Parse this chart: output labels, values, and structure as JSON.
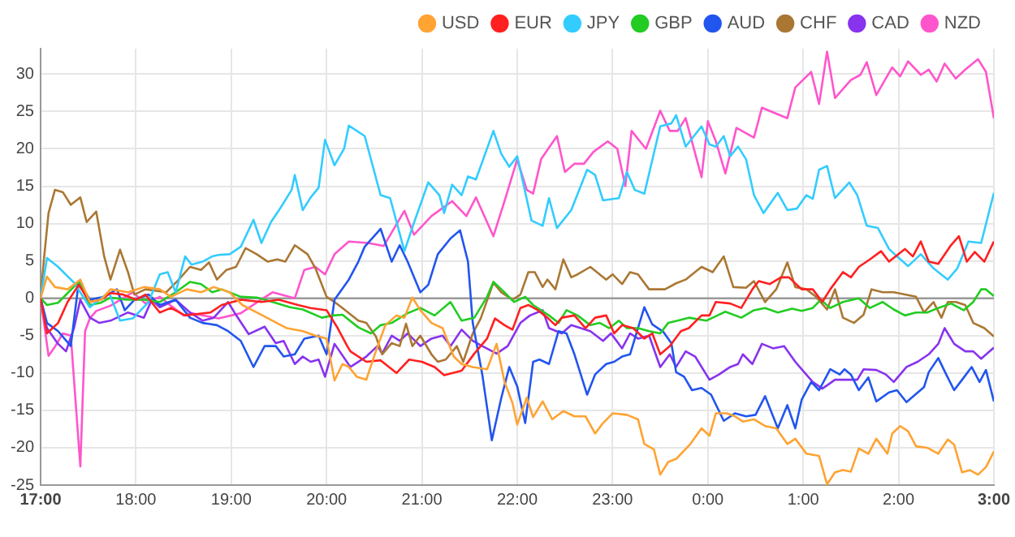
{
  "chart_data": {
    "type": "line",
    "legend": "top right",
    "grid": true,
    "marker": "none",
    "line_style": "solid",
    "xlim": [
      "--01-01T17:00",
      "--01-02T03:00"
    ],
    "xticks": [
      {
        "value": "--01-01T17:00",
        "label": "17:00"
      },
      {
        "value": "--01-01T18:00",
        "label": "18:00"
      },
      {
        "value": "--01-01T19:00",
        "label": "19:00"
      },
      {
        "value": "--01-01T20:00",
        "label": "20:00"
      },
      {
        "value": "--01-01T21:00",
        "label": "21:00"
      },
      {
        "value": "--01-01T22:00",
        "label": "22:00"
      },
      {
        "value": "--01-01T23:00",
        "label": "23:00"
      },
      {
        "value": "--01-02T00:00",
        "label": "0:00"
      },
      {
        "value": "--01-02T01:00",
        "label": "1:00"
      },
      {
        "value": "--01-02T02:00",
        "label": "2:00"
      },
      {
        "value": "--01-02T03:00",
        "label": "3:00"
      }
    ],
    "ylim": [
      -25,
      33.4
    ],
    "yticks": [
      -25,
      -20,
      -15,
      -10,
      -5,
      0,
      5,
      10,
      15,
      20,
      25,
      30
    ],
    "ref_lines": [
      {
        "axis": "y",
        "value": 0,
        "color": "#999999"
      }
    ],
    "series": [
      {
        "name": "USD",
        "color": "#ffa333",
        "x": [
          "--01-01T17:00",
          "--01-01T17:04",
          "--01-01T17:09",
          "--01-01T17:17",
          "--01-01T17:25",
          "--01-01T17:31",
          "--01-01T17:38",
          "--01-01T17:44",
          "--01-01T17:55",
          "--01-01T18:05",
          "--01-01T18:15",
          "--01-01T18:22",
          "--01-01T18:32",
          "--01-01T18:41",
          "--01-01T18:49",
          "--01-01T18:59",
          "--01-01T19:07",
          "--01-01T19:16",
          "--01-01T19:26",
          "--01-01T19:35",
          "--01-01T19:45",
          "--01-01T19:53",
          "--01-01T20:00",
          "--01-01T20:05",
          "--01-01T20:10",
          "--01-01T20:14",
          "--01-01T20:19",
          "--01-01T20:25",
          "--01-01T20:31",
          "--01-01T20:37",
          "--01-01T20:44",
          "--01-01T20:49",
          "--01-01T20:54",
          "--01-01T20:59",
          "--01-01T21:06",
          "--01-01T21:13",
          "--01-01T21:20",
          "--01-01T21:25",
          "--01-01T21:32",
          "--01-01T21:41",
          "--01-01T21:47",
          "--01-01T21:52",
          "--01-01T21:57",
          "--01-01T22:00",
          "--01-01T22:06",
          "--01-01T22:10",
          "--01-01T22:16",
          "--01-01T22:22",
          "--01-01T22:29",
          "--01-01T22:36",
          "--01-01T22:43",
          "--01-01T22:49",
          "--01-01T22:54",
          "--01-01T23:00",
          "--01-01T23:09",
          "--01-01T23:16",
          "--01-01T23:20",
          "--01-01T23:26",
          "--01-01T23:30",
          "--01-01T23:35",
          "--01-01T23:40",
          "--01-01T23:49",
          "--01-01T23:56",
          "--01-02T00:01",
          "--01-02T00:05",
          "--01-02T00:12",
          "--01-02T00:17",
          "--01-02T00:22",
          "--01-02T00:29",
          "--01-02T00:36",
          "--01-02T00:43",
          "--01-02T00:50",
          "--01-02T00:55",
          "--01-02T01:02",
          "--01-02T01:10",
          "--01-02T01:15",
          "--01-02T01:20",
          "--01-02T01:25",
          "--01-02T01:30",
          "--01-02T01:35",
          "--01-02T01:41",
          "--01-02T01:46",
          "--01-02T01:53",
          "--01-02T01:56",
          "--01-02T02:01",
          "--01-02T02:06",
          "--01-02T02:11",
          "--01-02T02:18",
          "--01-02T02:25",
          "--01-02T02:31",
          "--01-02T02:35",
          "--01-02T02:40",
          "--01-02T02:45",
          "--01-02T02:50",
          "--01-02T02:55",
          "--01-02T03:00"
        ],
        "values": [
          0,
          2.9,
          1.5,
          1.2,
          2.5,
          -0.5,
          -0.2,
          1.2,
          0.8,
          1.5,
          1.2,
          0.2,
          1.2,
          0.8,
          1.5,
          0.8,
          -0.9,
          -1.9,
          -3,
          -4,
          -4.4,
          -5,
          -5.4,
          -11,
          -8.8,
          -9.2,
          -10.5,
          -10.9,
          -7.1,
          -3.6,
          -2.3,
          -2.6,
          0.1,
          -1.6,
          -3.3,
          -4,
          -7.8,
          -8.8,
          -9.2,
          -9.5,
          -6.1,
          -11.2,
          -14,
          -16.9,
          -13.3,
          -15.9,
          -13.8,
          -16.2,
          -15.1,
          -15.8,
          -15.8,
          -18.1,
          -16.7,
          -15.4,
          -15.6,
          -16.2,
          -19.5,
          -20.2,
          -23.6,
          -21.9,
          -21.5,
          -19.5,
          -17.4,
          -18.4,
          -15.4,
          -15.4,
          -15.8,
          -16.5,
          -16.2,
          -17.1,
          -17.4,
          -19.5,
          -18.8,
          -20.8,
          -21.1,
          -24.9,
          -23.3,
          -23,
          -23.2,
          -20.1,
          -20.8,
          -18.8,
          -20.8,
          -18.1,
          -17.1,
          -17.8,
          -19.8,
          -20,
          -20.8,
          -18.9,
          -19.6,
          -23.3,
          -23,
          -23.6,
          -22.6,
          -20.5
        ]
      },
      {
        "name": "EUR",
        "color": "#ff2020",
        "x": [
          "--01-01T17:00",
          "--01-01T17:04",
          "--01-01T17:11",
          "--01-01T17:17",
          "--01-01T17:24",
          "--01-01T17:31",
          "--01-01T17:38",
          "--01-01T17:44",
          "--01-01T17:52",
          "--01-01T18:00",
          "--01-01T18:06",
          "--01-01T18:15",
          "--01-01T18:22",
          "--01-01T18:31",
          "--01-01T18:39",
          "--01-01T18:47",
          "--01-01T18:54",
          "--01-01T19:06",
          "--01-01T19:19",
          "--01-01T19:30",
          "--01-01T19:42",
          "--01-01T19:50",
          "--01-01T20:00",
          "--01-01T20:07",
          "--01-01T20:13",
          "--01-01T20:15",
          "--01-01T20:25",
          "--01-01T20:34",
          "--01-01T20:44",
          "--01-01T20:52",
          "--01-01T21:00",
          "--01-01T21:08",
          "--01-01T21:14",
          "--01-01T21:25",
          "--01-01T21:33",
          "--01-01T21:41",
          "--01-01T21:46",
          "--01-01T21:52",
          "--01-01T21:57",
          "--01-01T22:02",
          "--01-01T22:07",
          "--01-01T22:13",
          "--01-01T22:19",
          "--01-01T22:24",
          "--01-01T22:28",
          "--01-01T22:36",
          "--01-01T22:43",
          "--01-01T22:49",
          "--01-01T22:56",
          "--01-01T23:01",
          "--01-01T23:06",
          "--01-01T23:13",
          "--01-01T23:20",
          "--01-01T23:25",
          "--01-01T23:30",
          "--01-01T23:36",
          "--01-01T23:43",
          "--01-01T23:48",
          "--01-01T23:56",
          "--01-02T00:01",
          "--01-02T00:05",
          "--01-02T00:14",
          "--01-02T00:21",
          "--01-02T00:28",
          "--01-02T00:32",
          "--01-02T00:39",
          "--01-02T00:46",
          "--01-02T00:51",
          "--01-02T00:59",
          "--01-02T01:06",
          "--01-02T01:12",
          "--01-02T01:17",
          "--01-02T01:25",
          "--01-02T01:30",
          "--01-02T01:35",
          "--01-02T01:42",
          "--01-02T01:49",
          "--01-02T01:54",
          "--01-02T02:04",
          "--01-02T02:09",
          "--01-02T02:14",
          "--01-02T02:19",
          "--01-02T02:25",
          "--01-02T02:33",
          "--01-02T02:38",
          "--01-02T02:43",
          "--01-02T02:48",
          "--01-02T02:54",
          "--01-02T03:00"
        ],
        "values": [
          0,
          -4.7,
          -3.3,
          -0.5,
          1.8,
          -0.5,
          -0.2,
          0.7,
          0.5,
          -0.2,
          0.5,
          -1.9,
          -1.3,
          -2.3,
          -2.1,
          -1.9,
          -0.9,
          -0.2,
          -0.5,
          -0.2,
          -0.9,
          -1.3,
          -1.6,
          -4,
          -6.4,
          -7.1,
          -8.5,
          -8.3,
          -10,
          -8.2,
          -8.5,
          -9.2,
          -10.3,
          -9.7,
          -7.4,
          -5.4,
          -2.7,
          -3.6,
          -4.2,
          -1.3,
          -0.9,
          -1.6,
          -2.6,
          -3.6,
          -2.6,
          -2.3,
          -4,
          -2.6,
          -2.3,
          -4.7,
          -3.6,
          -4,
          -5.4,
          -4.7,
          -7.5,
          -6.4,
          -4.4,
          -4,
          -2.3,
          -2.3,
          -0.5,
          -0.7,
          -1.3,
          1.2,
          2.3,
          1.9,
          2.8,
          2.8,
          1.2,
          1.2,
          -0.5,
          1.2,
          3.5,
          2.8,
          4.2,
          5.2,
          6.3,
          4.9,
          6.6,
          5.6,
          7.6,
          4.9,
          4.6,
          7.1,
          8.3,
          4.9,
          6.2,
          4.9,
          7.6
        ]
      },
      {
        "name": "JPY",
        "color": "#33ccff",
        "x": [
          "--01-01T17:00",
          "--01-01T17:04",
          "--01-01T17:11",
          "--01-01T17:21",
          "--01-01T17:31",
          "--01-01T17:43",
          "--01-01T17:50",
          "--01-01T17:58",
          "--01-01T18:08",
          "--01-01T18:15",
          "--01-01T18:20",
          "--01-01T18:25",
          "--01-01T18:31",
          "--01-01T18:35",
          "--01-01T18:42",
          "--01-01T18:48",
          "--01-01T18:52",
          "--01-01T18:59",
          "--01-01T19:06",
          "--01-01T19:14",
          "--01-01T19:19",
          "--01-01T19:25",
          "--01-01T19:31",
          "--01-01T19:38",
          "--01-01T19:40",
          "--01-01T19:45",
          "--01-01T19:50",
          "--01-01T19:55",
          "--01-01T19:59",
          "--01-01T20:05",
          "--01-01T20:11",
          "--01-01T20:14",
          "--01-01T20:24",
          "--01-01T20:34",
          "--01-01T20:40",
          "--01-01T20:49",
          "--01-01T20:55",
          "--01-01T21:04",
          "--01-01T21:11",
          "--01-01T21:14",
          "--01-01T21:19",
          "--01-01T21:25",
          "--01-01T21:29",
          "--01-01T21:34",
          "--01-01T21:45",
          "--01-01T21:50",
          "--01-01T21:55",
          "--01-01T22:00",
          "--01-01T22:09",
          "--01-01T22:16",
          "--01-01T22:20",
          "--01-01T22:25",
          "--01-01T22:34",
          "--01-01T22:44",
          "--01-01T22:49",
          "--01-01T22:54",
          "--01-01T23:04",
          "--01-01T23:09",
          "--01-01T23:14",
          "--01-01T23:20",
          "--01-01T23:30",
          "--01-01T23:37",
          "--01-01T23:40",
          "--01-01T23:46",
          "--01-01T23:56",
          "--01-02T00:01",
          "--01-02T00:05",
          "--01-02T00:10",
          "--01-02T00:14",
          "--01-02T00:19",
          "--01-02T00:24",
          "--01-02T00:29",
          "--01-02T00:35",
          "--01-02T00:44",
          "--01-02T00:50",
          "--01-02T00:56",
          "--01-02T01:02",
          "--01-02T01:06",
          "--01-02T01:10",
          "--01-02T01:15",
          "--01-02T01:20",
          "--01-02T01:29",
          "--01-02T01:34",
          "--01-02T01:40",
          "--01-02T01:47",
          "--01-02T01:54",
          "--01-02T01:59",
          "--01-02T02:06",
          "--01-02T02:14",
          "--01-02T02:22",
          "--01-02T02:31",
          "--01-02T02:37",
          "--01-02T02:44",
          "--01-02T02:52",
          "--01-02T03:00"
        ],
        "values": [
          0,
          5.4,
          4.2,
          2.1,
          -1.2,
          0.8,
          -3,
          -2.7,
          -0.5,
          3.2,
          3.5,
          0.8,
          5.6,
          4.5,
          4.9,
          5.6,
          5.8,
          5.9,
          6.9,
          10.5,
          7.4,
          10.2,
          12.1,
          14.5,
          16.5,
          11.8,
          13.5,
          14.8,
          21.2,
          17.8,
          20,
          23.1,
          21.7,
          13.8,
          13.4,
          6.3,
          10.1,
          15.5,
          13.8,
          11.4,
          15.2,
          13.8,
          16.3,
          15.9,
          22.4,
          19.3,
          17.6,
          19,
          10.4,
          9.7,
          13.4,
          9.4,
          11.8,
          17.2,
          16.5,
          13.1,
          13.4,
          16.9,
          14.5,
          14,
          23,
          23.4,
          24.5,
          20.3,
          23,
          20.6,
          20.3,
          21.7,
          19,
          20.3,
          18.6,
          13.8,
          11.4,
          14.1,
          11.8,
          12,
          13.8,
          13.3,
          17.2,
          17.7,
          13.4,
          15.5,
          13.8,
          9.7,
          9.4,
          6.6,
          5.6,
          4.3,
          5.9,
          4,
          2.5,
          4,
          7.6,
          7.4,
          14.1
        ]
      },
      {
        "name": "GBP",
        "color": "#22cc22",
        "x": [
          "--01-01T17:00",
          "--01-01T17:04",
          "--01-01T17:11",
          "--01-01T17:24",
          "--01-01T17:31",
          "--01-01T17:38",
          "--01-01T17:44",
          "--01-01T17:54",
          "--01-01T18:05",
          "--01-01T18:15",
          "--01-01T18:25",
          "--01-01T18:34",
          "--01-01T18:41",
          "--01-01T18:48",
          "--01-01T18:54",
          "--01-01T19:06",
          "--01-01T19:16",
          "--01-01T19:26",
          "--01-01T19:37",
          "--01-01T19:45",
          "--01-01T19:57",
          "--01-01T20:04",
          "--01-01T20:10",
          "--01-01T20:20",
          "--01-01T20:28",
          "--01-01T20:34",
          "--01-01T20:41",
          "--01-01T20:51",
          "--01-01T20:59",
          "--01-01T21:08",
          "--01-01T21:18",
          "--01-01T21:25",
          "--01-01T21:33",
          "--01-01T21:41",
          "--01-01T21:45",
          "--01-01T21:52",
          "--01-01T21:58",
          "--01-01T22:05",
          "--01-01T22:10",
          "--01-01T22:20",
          "--01-01T22:26",
          "--01-01T22:31",
          "--01-01T22:38",
          "--01-01T22:46",
          "--01-01T22:52",
          "--01-01T22:58",
          "--01-01T23:04",
          "--01-01T23:09",
          "--01-01T23:16",
          "--01-01T23:23",
          "--01-01T23:30",
          "--01-01T23:35",
          "--01-01T23:41",
          "--01-01T23:48",
          "--01-01T23:59",
          "--01-02T00:06",
          "--01-02T00:11",
          "--01-02T00:21",
          "--01-02T00:29",
          "--01-02T00:36",
          "--01-02T00:44",
          "--01-02T00:53",
          "--01-02T00:59",
          "--01-02T01:06",
          "--01-02T01:11",
          "--01-02T01:17",
          "--01-02T01:25",
          "--01-02T01:35",
          "--01-02T01:42",
          "--01-02T01:50",
          "--01-02T01:57",
          "--01-02T02:04",
          "--01-02T02:11",
          "--01-02T02:18",
          "--01-02T02:25",
          "--01-02T02:33",
          "--01-02T02:41",
          "--01-02T02:47",
          "--01-02T02:52",
          "--01-02T02:55",
          "--01-02T03:00"
        ],
        "values": [
          0,
          -0.9,
          -0.6,
          2.2,
          -0.9,
          -0.6,
          0.1,
          -0.2,
          -0.2,
          -0.5,
          0.8,
          2.2,
          1.9,
          0.8,
          1.2,
          0.2,
          0.1,
          -0.5,
          -1.2,
          -1.5,
          -2.6,
          -2.3,
          -2.2,
          -3.9,
          -4.7,
          -3.6,
          -3.3,
          -2,
          -1.3,
          -2.3,
          -0.5,
          -3,
          -2.6,
          0.2,
          2.2,
          0.8,
          -0.5,
          0.2,
          -0.9,
          -2.3,
          -3.3,
          -1.6,
          -2.3,
          -3.6,
          -3.3,
          -4,
          -3,
          -4,
          -4,
          -4.4,
          -4.7,
          -3.3,
          -3,
          -2.6,
          -3,
          -2.3,
          -1.8,
          -2.6,
          -1.6,
          -1.3,
          -1.9,
          -1.4,
          -1.7,
          -1.3,
          -0.2,
          -1.3,
          -0.5,
          0,
          -1.3,
          -0.5,
          -1.5,
          -2.3,
          -1.9,
          -1.9,
          -1.3,
          -0.7,
          -1.6,
          -0.5,
          1.2,
          1.2,
          0.3
        ]
      },
      {
        "name": "AUD",
        "color": "#2255ee",
        "x": [
          "--01-01T17:00",
          "--01-01T17:04",
          "--01-01T17:11",
          "--01-01T17:19",
          "--01-01T17:24",
          "--01-01T17:31",
          "--01-01T17:40",
          "--01-01T17:48",
          "--01-01T17:53",
          "--01-01T17:59",
          "--01-01T18:08",
          "--01-01T18:15",
          "--01-01T18:25",
          "--01-01T18:34",
          "--01-01T18:42",
          "--01-01T18:51",
          "--01-01T18:58",
          "--01-01T19:06",
          "--01-01T19:14",
          "--01-01T19:21",
          "--01-01T19:28",
          "--01-01T19:33",
          "--01-01T19:40",
          "--01-01T19:46",
          "--01-01T19:55",
          "--01-01T20:00",
          "--01-01T20:05",
          "--01-01T20:14",
          "--01-01T20:20",
          "--01-01T20:24",
          "--01-01T20:34",
          "--01-01T20:41",
          "--01-01T20:46",
          "--01-01T20:51",
          "--01-01T20:59",
          "--01-01T21:04",
          "--01-01T21:10",
          "--01-01T21:18",
          "--01-01T21:24",
          "--01-01T21:29",
          "--01-01T21:32",
          "--01-01T21:38",
          "--01-01T21:44",
          "--01-01T21:50",
          "--01-01T21:55",
          "--01-01T22:00",
          "--01-01T22:05",
          "--01-01T22:10",
          "--01-01T22:14",
          "--01-01T22:20",
          "--01-01T22:26",
          "--01-01T22:31",
          "--01-01T22:36",
          "--01-01T22:44",
          "--01-01T22:49",
          "--01-01T22:56",
          "--01-01T23:01",
          "--01-01T23:06",
          "--01-01T23:11",
          "--01-01T23:20",
          "--01-01T23:25",
          "--01-01T23:32",
          "--01-01T23:37",
          "--01-01T23:40",
          "--01-01T23:45",
          "--01-01T23:50",
          "--01-01T23:56",
          "--01-02T00:02",
          "--01-02T00:10",
          "--01-02T00:17",
          "--01-02T00:24",
          "--01-02T00:30",
          "--01-02T00:36",
          "--01-02T00:44",
          "--01-02T00:50",
          "--01-02T00:55",
          "--01-02T00:59",
          "--01-02T01:05",
          "--01-02T01:10",
          "--01-02T01:17",
          "--01-02T01:23",
          "--01-02T01:26",
          "--01-02T01:30",
          "--01-02T01:35",
          "--01-02T01:41",
          "--01-02T01:46",
          "--01-02T01:54",
          "--01-02T01:59",
          "--01-02T02:05",
          "--01-02T02:16",
          "--01-02T02:19",
          "--01-02T02:25",
          "--01-02T02:30",
          "--01-02T02:35",
          "--01-02T02:40",
          "--01-02T02:46",
          "--01-02T02:51",
          "--01-02T02:55",
          "--01-02T03:00"
        ],
        "values": [
          0,
          -3.3,
          -4.4,
          -6.4,
          2.2,
          -0.2,
          0.2,
          1.2,
          -1.6,
          -0.2,
          0.5,
          -0.9,
          -0.2,
          -2.6,
          -3.3,
          -3.6,
          -4.4,
          -5.7,
          -9.2,
          -6.4,
          -6.4,
          -7.8,
          -7.5,
          -5.4,
          -5,
          -7.5,
          -0.2,
          2.5,
          4.9,
          6.9,
          9.3,
          4.9,
          7.1,
          4.9,
          0.8,
          1.8,
          5.9,
          8,
          9.1,
          4.9,
          -3.3,
          -10.2,
          -19,
          -13.3,
          -9.2,
          -11.8,
          -16.7,
          -8.5,
          -8.2,
          -8.8,
          -4.4,
          -4.7,
          -7.5,
          -12.9,
          -10.2,
          -8.8,
          -8.5,
          -7.8,
          -7.5,
          -1.2,
          -3.5,
          -4.5,
          -6,
          -9.9,
          -10.5,
          -12.3,
          -12,
          -12.9,
          -16.4,
          -15.4,
          -15.8,
          -15.6,
          -13.1,
          -17.4,
          -14.3,
          -17.4,
          -13.6,
          -11.2,
          -12.3,
          -9.5,
          -10.2,
          -9.5,
          -10.2,
          -12.3,
          -10.6,
          -13.8,
          -12.6,
          -12.3,
          -13.9,
          -11.9,
          -9.9,
          -8,
          -10.2,
          -12.3,
          -10.9,
          -9.2,
          -11.2,
          -9.6,
          -13.8
        ]
      },
      {
        "name": "CHF",
        "color": "#aa7733",
        "x": [
          "--01-01T17:00",
          "--01-01T17:02",
          "--01-01T17:05",
          "--01-01T17:09",
          "--01-01T17:14",
          "--01-01T17:19",
          "--01-01T17:25",
          "--01-01T17:29",
          "--01-01T17:35",
          "--01-01T17:40",
          "--01-01T17:44",
          "--01-01T17:50",
          "--01-01T17:55",
          "--01-01T17:59",
          "--01-01T18:06",
          "--01-01T18:19",
          "--01-01T18:27",
          "--01-01T18:34",
          "--01-01T18:41",
          "--01-01T18:46",
          "--01-01T18:51",
          "--01-01T18:57",
          "--01-01T19:03",
          "--01-01T19:09",
          "--01-01T19:16",
          "--01-01T19:23",
          "--01-01T19:29",
          "--01-01T19:34",
          "--01-01T19:40",
          "--01-01T19:48",
          "--01-01T19:53",
          "--01-01T20:00",
          "--01-01T20:05",
          "--01-01T20:10",
          "--01-01T20:20",
          "--01-01T20:25",
          "--01-01T20:31",
          "--01-01T20:35",
          "--01-01T20:41",
          "--01-01T20:46",
          "--01-01T20:50",
          "--01-01T20:54",
          "--01-01T20:59",
          "--01-01T21:06",
          "--01-01T21:10",
          "--01-01T21:15",
          "--01-01T21:22",
          "--01-01T21:26",
          "--01-01T21:32",
          "--01-01T21:37",
          "--01-01T21:45",
          "--01-01T21:50",
          "--01-01T21:57",
          "--01-01T22:02",
          "--01-01T22:07",
          "--01-01T22:11",
          "--01-01T22:16",
          "--01-01T22:19",
          "--01-01T22:24",
          "--01-01T22:29",
          "--01-01T22:34",
          "--01-01T22:38",
          "--01-01T22:46",
          "--01-01T22:56",
          "--01-01T23:00",
          "--01-01T23:06",
          "--01-01T23:11",
          "--01-01T23:16",
          "--01-01T23:23",
          "--01-01T23:33",
          "--01-01T23:40",
          "--01-01T23:46",
          "--01-01T23:56",
          "--01-02T00:03",
          "--01-02T00:10",
          "--01-02T00:16",
          "--01-02T00:24",
          "--01-02T00:29",
          "--01-02T00:36",
          "--01-02T00:43",
          "--01-02T00:50",
          "--01-02T00:55",
          "--01-02T01:02",
          "--01-02T01:08",
          "--01-02T01:15",
          "--01-02T01:20",
          "--01-02T01:25",
          "--01-02T01:32",
          "--01-02T01:38",
          "--01-02T01:43",
          "--01-02T01:50",
          "--01-02T01:57",
          "--01-02T02:04",
          "--01-02T02:11",
          "--01-02T02:16",
          "--01-02T02:22",
          "--01-02T02:27",
          "--01-02T02:31",
          "--01-02T02:36",
          "--01-02T02:42",
          "--01-02T02:47",
          "--01-02T02:54",
          "--01-02T03:00"
        ],
        "values": [
          0,
          5,
          11.4,
          14.5,
          14.2,
          12.5,
          13.5,
          10.2,
          11.6,
          5.6,
          2.5,
          6.5,
          3.5,
          0.5,
          1.2,
          0.8,
          2.5,
          4.2,
          3.8,
          4.8,
          2.5,
          3.8,
          4.2,
          6.7,
          5.9,
          4.9,
          5.2,
          4.9,
          7.1,
          5.9,
          4,
          0.2,
          -0.5,
          -1.3,
          -3,
          -3.3,
          -5.1,
          -7.5,
          -6,
          -6.4,
          -3.4,
          -6.4,
          -5,
          -7.5,
          -8.5,
          -8.2,
          -6.4,
          -8.5,
          -4.7,
          -2.7,
          2.1,
          0.8,
          -0.2,
          0.5,
          3.5,
          3.5,
          1.5,
          2.5,
          1.2,
          5.2,
          2.8,
          3.2,
          4.2,
          2.5,
          3.2,
          1.9,
          3.5,
          3.2,
          1.2,
          1.2,
          2,
          2.5,
          4.2,
          3.5,
          5.6,
          1.5,
          1.4,
          2.3,
          -0.5,
          1.2,
          4.8,
          1.5,
          1.2,
          0.2,
          -1.5,
          1.2,
          -2.6,
          -3.3,
          -2.2,
          1.2,
          0.8,
          0.8,
          0.5,
          0.2,
          -1.9,
          -0.5,
          -2.6,
          -0.5,
          -0.5,
          -0.9,
          -3.3,
          -4,
          -5.1
        ]
      },
      {
        "name": "CAD",
        "color": "#8833ee",
        "x": [
          "--01-01T17:00",
          "--01-01T17:04",
          "--01-01T17:11",
          "--01-01T17:16",
          "--01-01T17:21",
          "--01-01T17:25",
          "--01-01T17:31",
          "--01-01T17:37",
          "--01-01T17:44",
          "--01-01T17:55",
          "--01-01T18:05",
          "--01-01T18:10",
          "--01-01T18:15",
          "--01-01T18:25",
          "--01-01T18:34",
          "--01-01T18:42",
          "--01-01T18:49",
          "--01-01T18:58",
          "--01-01T19:02",
          "--01-01T19:11",
          "--01-01T19:21",
          "--01-01T19:28",
          "--01-01T19:33",
          "--01-01T19:40",
          "--01-01T19:45",
          "--01-01T19:50",
          "--01-01T19:55",
          "--01-01T19:59",
          "--01-01T20:05",
          "--01-01T20:15",
          "--01-01T20:25",
          "--01-01T20:32",
          "--01-01T20:35",
          "--01-01T20:41",
          "--01-01T20:46",
          "--01-01T20:51",
          "--01-01T20:59",
          "--01-01T21:06",
          "--01-01T21:13",
          "--01-01T21:18",
          "--01-01T21:25",
          "--01-01T21:32",
          "--01-01T21:38",
          "--01-01T21:47",
          "--01-01T21:54",
          "--01-01T22:02",
          "--01-01T22:08",
          "--01-01T22:16",
          "--01-01T22:20",
          "--01-01T22:28",
          "--01-01T22:34",
          "--01-01T22:40",
          "--01-01T22:46",
          "--01-01T22:54",
          "--01-01T22:59",
          "--01-01T23:06",
          "--01-01T23:11",
          "--01-01T23:16",
          "--01-01T23:23",
          "--01-01T23:30",
          "--01-01T23:36",
          "--01-01T23:40",
          "--01-01T23:46",
          "--01-01T23:52",
          "--01-02T00:01",
          "--01-02T00:07",
          "--01-02T00:14",
          "--01-02T00:19",
          "--01-02T00:22",
          "--01-02T00:28",
          "--01-02T00:34",
          "--01-02T00:41",
          "--01-02T00:48",
          "--01-02T00:55",
          "--01-02T00:59",
          "--01-02T01:06",
          "--01-02T01:12",
          "--01-02T01:20",
          "--01-02T01:27",
          "--01-02T01:34",
          "--01-02T01:38",
          "--01-02T01:46",
          "--01-02T01:52",
          "--01-02T01:57",
          "--01-02T02:05",
          "--01-02T02:12",
          "--01-02T02:19",
          "--01-02T02:25",
          "--01-02T02:29",
          "--01-02T02:35",
          "--01-02T02:42",
          "--01-02T02:47",
          "--01-02T02:52",
          "--01-02T03:00"
        ],
        "values": [
          0,
          -4,
          -6.1,
          -7.1,
          -4,
          -0.2,
          -2.6,
          -3.3,
          -3,
          -1.9,
          -2.6,
          -0.2,
          -1.2,
          -0.2,
          -1.9,
          -3,
          -2.6,
          -0.5,
          -1.9,
          -4.8,
          -3.8,
          -6,
          -5.7,
          -8.8,
          -7.8,
          -8.5,
          -8.2,
          -10.5,
          -6.1,
          -9.2,
          -7.8,
          -6.4,
          -7.4,
          -5,
          -5.7,
          -4.7,
          -6.4,
          -5.4,
          -5,
          -6.4,
          -4.2,
          -5.7,
          -6.4,
          -7.4,
          -6.4,
          -3.3,
          -2.3,
          -1.6,
          -4,
          -4.7,
          -3.6,
          -4,
          -4.4,
          -5.7,
          -4.7,
          -6.7,
          -4.7,
          -5.4,
          -5,
          -9.2,
          -7.5,
          -9.2,
          -7.1,
          -7.8,
          -10.9,
          -10.2,
          -9.2,
          -8.8,
          -7.5,
          -8.8,
          -6.1,
          -6.7,
          -6.4,
          -8.5,
          -9.5,
          -11.2,
          -12.1,
          -10.9,
          -10.9,
          -10.9,
          -9.5,
          -9.6,
          -10.2,
          -11.2,
          -9.2,
          -8.5,
          -7.5,
          -6.1,
          -4,
          -6.1,
          -7.1,
          -7.1,
          -8.1,
          -6.6
        ]
      },
      {
        "name": "NZD",
        "color": "#ff55cc",
        "x": [
          "--01-01T17:00",
          "--01-01T17:05",
          "--01-01T17:09",
          "--01-01T17:14",
          "--01-01T17:19",
          "--01-01T17:25",
          "--01-01T17:28",
          "--01-01T17:31",
          "--01-01T17:35",
          "--01-01T17:44",
          "--01-01T17:58",
          "--01-01T18:06",
          "--01-01T18:15",
          "--01-01T18:22",
          "--01-01T18:30",
          "--01-01T18:35",
          "--01-01T18:52",
          "--01-01T19:06",
          "--01-01T19:18",
          "--01-01T19:26",
          "--01-01T19:40",
          "--01-01T19:46",
          "--01-01T19:53",
          "--01-01T19:59",
          "--01-01T20:05",
          "--01-01T20:14",
          "--01-01T20:26",
          "--01-01T20:36",
          "--01-01T20:49",
          "--01-01T20:55",
          "--01-01T21:06",
          "--01-01T21:19",
          "--01-01T21:28",
          "--01-01T21:34",
          "--01-01T21:45",
          "--01-01T21:52",
          "--01-01T22:00",
          "--01-01T22:06",
          "--01-01T22:10",
          "--01-01T22:15",
          "--01-01T22:25",
          "--01-01T22:30",
          "--01-01T22:36",
          "--01-01T22:42",
          "--01-01T22:48",
          "--01-01T22:57",
          "--01-01T23:03",
          "--01-01T23:08",
          "--01-01T23:12",
          "--01-01T23:21",
          "--01-01T23:30",
          "--01-01T23:36",
          "--01-01T23:41",
          "--01-01T23:46",
          "--01-01T23:56",
          "--01-02T00:00",
          "--01-02T00:05",
          "--01-02T00:11",
          "--01-02T00:18",
          "--01-02T00:29",
          "--01-02T00:34",
          "--01-02T00:42",
          "--01-02T00:50",
          "--01-02T00:55",
          "--01-02T01:05",
          "--01-02T01:10",
          "--01-02T01:15",
          "--01-02T01:20",
          "--01-02T01:30",
          "--01-02T01:36",
          "--01-02T01:40",
          "--01-02T01:46",
          "--01-02T01:56",
          "--01-02T02:01",
          "--01-02T02:06",
          "--01-02T02:14",
          "--01-02T02:19",
          "--01-02T02:24",
          "--01-02T02:29",
          "--01-02T02:36",
          "--01-02T02:42",
          "--01-02T02:50",
          "--01-02T02:55",
          "--01-02T03:00"
        ],
        "values": [
          0,
          -7.7,
          -6.5,
          -4.7,
          -5,
          -22.5,
          -4.4,
          -2.7,
          -1.7,
          -1,
          0.8,
          -0.7,
          0.2,
          -1,
          -2.3,
          -2,
          -2.7,
          -2,
          -0.3,
          0.8,
          0,
          3.8,
          4.2,
          3.2,
          5.9,
          7.6,
          7.4,
          7,
          11.7,
          8.5,
          11,
          13,
          11,
          13.5,
          8.3,
          13,
          18.6,
          14.5,
          14,
          18.6,
          21.7,
          16.9,
          18,
          18,
          19.6,
          21,
          20,
          15,
          22.4,
          20,
          25.1,
          22.4,
          22.4,
          24.1,
          16.2,
          23.7,
          21,
          16.7,
          22.8,
          21.5,
          25.5,
          24.8,
          24.1,
          28.2,
          30.3,
          26,
          33,
          26.8,
          29.2,
          29.9,
          31.6,
          27.2,
          30.9,
          29.7,
          31.7,
          29.9,
          30.6,
          29,
          31.4,
          29.4,
          30.6,
          32,
          30.3,
          24.1
        ]
      }
    ]
  }
}
